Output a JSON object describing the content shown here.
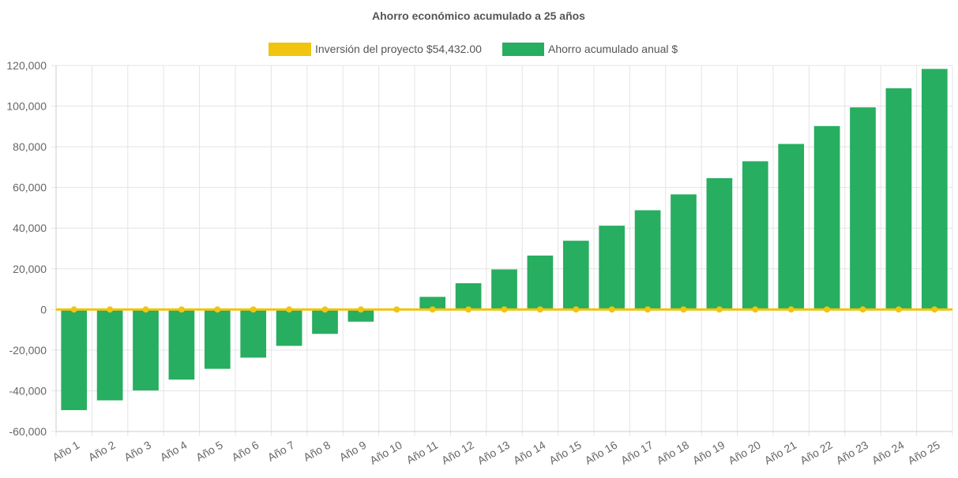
{
  "chart_data": {
    "type": "bar",
    "title": "Ahorro económico acumulado a 25 años",
    "categories": [
      "Año 1",
      "Año 2",
      "Año 3",
      "Año 4",
      "Año 5",
      "Año 6",
      "Año 7",
      "Año 8",
      "Año 9",
      "Año 10",
      "Año 11",
      "Año 12",
      "Año 13",
      "Año 14",
      "Año 15",
      "Año 16",
      "Año 17",
      "Año 18",
      "Año 19",
      "Año 20",
      "Año 21",
      "Año 22",
      "Año 23",
      "Año 24",
      "Año 25"
    ],
    "series": [
      {
        "name": "Inversión del proyecto $54,432.00",
        "type": "line",
        "color": "#f1c40f",
        "values": [
          0,
          0,
          0,
          0,
          0,
          0,
          0,
          0,
          0,
          0,
          0,
          0,
          0,
          0,
          0,
          0,
          0,
          0,
          0,
          0,
          0,
          0,
          0,
          0,
          0
        ]
      },
      {
        "name": "Ahorro acumulado anual $",
        "type": "bar",
        "color": "#27ae60",
        "values": [
          -49500,
          -44700,
          -39800,
          -34500,
          -29200,
          -23700,
          -17900,
          -12000,
          -6000,
          0,
          6200,
          12900,
          19700,
          26500,
          33800,
          41200,
          48800,
          56600,
          64600,
          72900,
          81400,
          90200,
          99400,
          108800,
          118300
        ]
      }
    ],
    "ylim": [
      -60000,
      120000
    ],
    "yticks": [
      "120,000",
      "100,000",
      "80,000",
      "60,000",
      "40,000",
      "20,000",
      "0",
      "-20,000",
      "-40,000",
      "-60,000"
    ],
    "ytick_values": [
      120000,
      100000,
      80000,
      60000,
      40000,
      20000,
      0,
      -20000,
      -40000,
      -60000
    ],
    "grid": true,
    "legend_position": "top"
  }
}
